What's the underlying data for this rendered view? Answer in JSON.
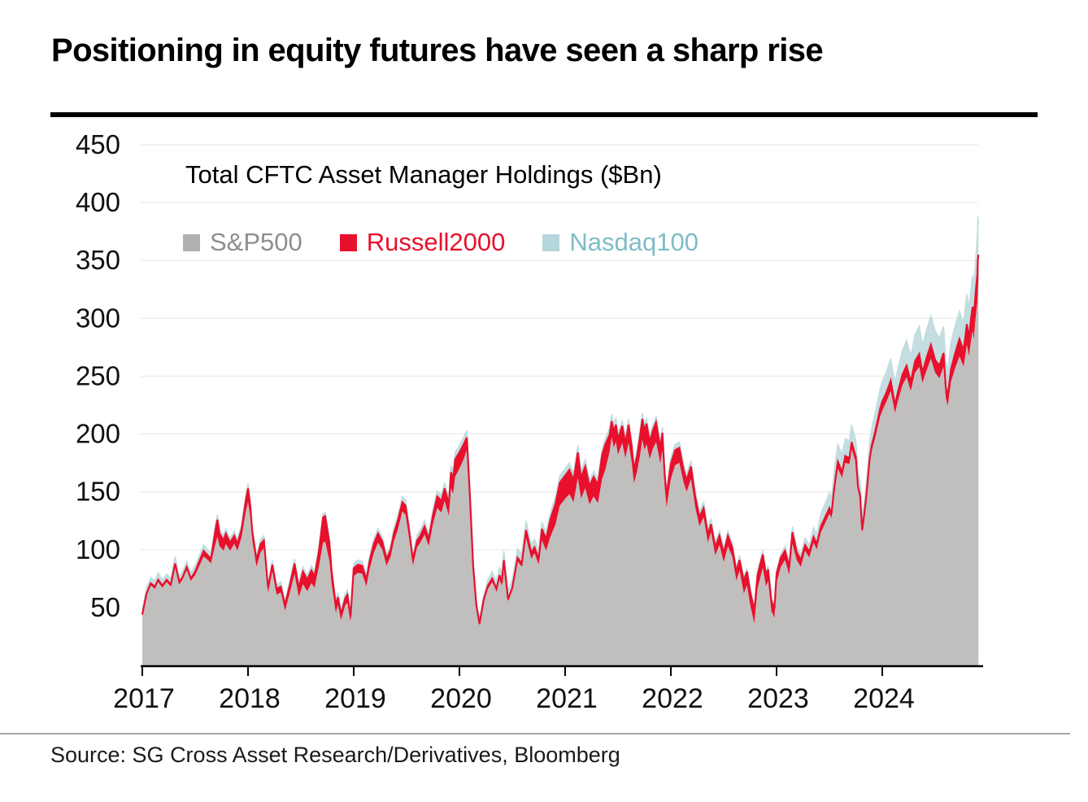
{
  "page": {
    "title": "Positioning in equity futures have seen a sharp rise",
    "source": "Source: SG Cross Asset Research/Derivatives, Bloomberg"
  },
  "chart_data": {
    "type": "area",
    "stacked": true,
    "title": "Total CFTC Asset Manager Holdings ($Bn)",
    "unit": "$Bn",
    "legend_position": "top-left-inside",
    "grid": true,
    "grid_color": "#ebebeb",
    "axis_color": "#000000",
    "tick_label_color": "#111111",
    "xlim": [
      2017.0,
      2025.0
    ],
    "ylim": [
      0,
      450
    ],
    "x_ticks": [
      2017,
      2018,
      2019,
      2020,
      2021,
      2022,
      2023,
      2024
    ],
    "y_ticks": [
      50,
      100,
      150,
      200,
      250,
      300,
      350,
      400,
      450
    ],
    "legend": [
      {
        "label": "S&P500",
        "swatch_color": "#b3b0b0",
        "text_color": "#918d8d"
      },
      {
        "label": "Russell2000",
        "swatch_color": "#e8112d",
        "text_color": "#e8112d"
      },
      {
        "label": "Nasdaq100",
        "swatch_color": "#b5d6da",
        "text_color": "#7fbcc8"
      }
    ],
    "series": [
      {
        "name": "S&P500",
        "color": "#c1bebe",
        "role": "bottom-band"
      },
      {
        "name": "Russell2000",
        "color": "#e8112d",
        "role": "middle-band"
      },
      {
        "name": "Nasdaq100",
        "color": "#c3dde0",
        "role": "top-band"
      }
    ],
    "point_format": [
      "year",
      "sp500",
      "russell2000",
      "nasdaq100"
    ],
    "points": [
      [
        2017.0,
        42,
        2,
        4
      ],
      [
        2017.04,
        60,
        2,
        5
      ],
      [
        2017.08,
        69,
        2,
        5
      ],
      [
        2017.12,
        66,
        2,
        5
      ],
      [
        2017.15,
        72,
        2,
        6
      ],
      [
        2017.19,
        67,
        2,
        5
      ],
      [
        2017.23,
        72,
        2,
        5
      ],
      [
        2017.27,
        68,
        2,
        5
      ],
      [
        2017.31,
        85,
        3,
        6
      ],
      [
        2017.35,
        70,
        2,
        5
      ],
      [
        2017.38,
        74,
        2,
        5
      ],
      [
        2017.42,
        82,
        3,
        5
      ],
      [
        2017.46,
        73,
        2,
        5
      ],
      [
        2017.5,
        78,
        3,
        5
      ],
      [
        2017.54,
        86,
        4,
        5
      ],
      [
        2017.58,
        94,
        5,
        5
      ],
      [
        2017.62,
        91,
        4,
        5
      ],
      [
        2017.65,
        88,
        4,
        5
      ],
      [
        2017.69,
        104,
        12,
        4
      ],
      [
        2017.71,
        111,
        15,
        4
      ],
      [
        2017.73,
        103,
        11,
        4
      ],
      [
        2017.77,
        99,
        9,
        4
      ],
      [
        2017.79,
        105,
        9,
        4
      ],
      [
        2017.83,
        99,
        7,
        4
      ],
      [
        2017.87,
        105,
        7,
        4
      ],
      [
        2017.9,
        99,
        6,
        4
      ],
      [
        2017.94,
        111,
        7,
        4
      ],
      [
        2017.98,
        133,
        10,
        4
      ],
      [
        2018.0,
        141,
        12,
        4
      ],
      [
        2018.02,
        129,
        10,
        4
      ],
      [
        2018.04,
        108,
        8,
        4
      ],
      [
        2018.08,
        85,
        6,
        4
      ],
      [
        2018.12,
        98,
        7,
        4
      ],
      [
        2018.15,
        101,
        7,
        4
      ],
      [
        2018.19,
        62,
        5,
        4
      ],
      [
        2018.23,
        81,
        6,
        4
      ],
      [
        2018.27,
        61,
        5,
        4
      ],
      [
        2018.31,
        63,
        5,
        4
      ],
      [
        2018.35,
        47,
        5,
        4
      ],
      [
        2018.4,
        64,
        7,
        4
      ],
      [
        2018.44,
        79,
        9,
        4
      ],
      [
        2018.48,
        59,
        8,
        4
      ],
      [
        2018.52,
        70,
        11,
        4
      ],
      [
        2018.56,
        64,
        10,
        4
      ],
      [
        2018.6,
        71,
        11,
        4
      ],
      [
        2018.63,
        67,
        10,
        4
      ],
      [
        2018.67,
        85,
        13,
        4
      ],
      [
        2018.71,
        106,
        22,
        3
      ],
      [
        2018.73,
        107,
        22,
        3
      ],
      [
        2018.77,
        90,
        16,
        3
      ],
      [
        2018.79,
        71,
        11,
        3
      ],
      [
        2018.83,
        45,
        7,
        3
      ],
      [
        2018.85,
        52,
        7,
        4
      ],
      [
        2018.88,
        39,
        5,
        4
      ],
      [
        2018.92,
        52,
        6,
        4
      ],
      [
        2018.94,
        54,
        7,
        4
      ],
      [
        2018.97,
        37,
        5,
        4
      ],
      [
        2019.0,
        77,
        7,
        4
      ],
      [
        2019.04,
        80,
        7,
        4
      ],
      [
        2019.08,
        79,
        7,
        4
      ],
      [
        2019.12,
        68,
        6,
        4
      ],
      [
        2019.15,
        83,
        7,
        4
      ],
      [
        2019.19,
        97,
        8,
        4
      ],
      [
        2019.23,
        106,
        8,
        4
      ],
      [
        2019.27,
        100,
        7,
        4
      ],
      [
        2019.31,
        86,
        6,
        4
      ],
      [
        2019.35,
        94,
        6,
        4
      ],
      [
        2019.38,
        107,
        7,
        4
      ],
      [
        2019.42,
        118,
        8,
        4
      ],
      [
        2019.46,
        133,
        8,
        5
      ],
      [
        2019.49,
        130,
        8,
        5
      ],
      [
        2019.52,
        112,
        7,
        5
      ],
      [
        2019.54,
        99,
        6,
        5
      ],
      [
        2019.56,
        86,
        5,
        5
      ],
      [
        2019.6,
        102,
        6,
        5
      ],
      [
        2019.63,
        106,
        6,
        5
      ],
      [
        2019.67,
        113,
        7,
        5
      ],
      [
        2019.71,
        103,
        6,
        5
      ],
      [
        2019.75,
        122,
        8,
        5
      ],
      [
        2019.79,
        136,
        10,
        5
      ],
      [
        2019.83,
        132,
        10,
        5
      ],
      [
        2019.86,
        142,
        11,
        5
      ],
      [
        2019.9,
        129,
        10,
        5
      ],
      [
        2019.92,
        153,
        14,
        6
      ],
      [
        2019.94,
        148,
        13,
        6
      ],
      [
        2019.96,
        163,
        15,
        6
      ],
      [
        2020.0,
        170,
        14,
        6
      ],
      [
        2020.04,
        178,
        13,
        6
      ],
      [
        2020.07,
        186,
        11,
        6
      ],
      [
        2020.1,
        138,
        7,
        5
      ],
      [
        2020.13,
        82,
        4,
        4
      ],
      [
        2020.16,
        49,
        3,
        3
      ],
      [
        2020.19,
        34,
        2,
        3
      ],
      [
        2020.23,
        54,
        3,
        4
      ],
      [
        2020.27,
        66,
        3,
        5
      ],
      [
        2020.31,
        72,
        3,
        6
      ],
      [
        2020.35,
        64,
        2,
        6
      ],
      [
        2020.38,
        75,
        3,
        7
      ],
      [
        2020.4,
        68,
        3,
        7
      ],
      [
        2020.42,
        88,
        3,
        8
      ],
      [
        2020.46,
        55,
        2,
        7
      ],
      [
        2020.5,
        65,
        2,
        7
      ],
      [
        2020.55,
        90,
        3,
        8
      ],
      [
        2020.59,
        85,
        3,
        8
      ],
      [
        2020.63,
        110,
        7,
        8
      ],
      [
        2020.68,
        92,
        5,
        7
      ],
      [
        2020.71,
        97,
        5,
        7
      ],
      [
        2020.75,
        87,
        5,
        7
      ],
      [
        2020.78,
        108,
        10,
        6
      ],
      [
        2020.82,
        99,
        10,
        6
      ],
      [
        2020.86,
        111,
        15,
        6
      ],
      [
        2020.91,
        122,
        18,
        6
      ],
      [
        2020.95,
        138,
        20,
        6
      ],
      [
        2021.0,
        144,
        20,
        6
      ],
      [
        2021.04,
        148,
        21,
        6
      ],
      [
        2021.08,
        141,
        19,
        6
      ],
      [
        2021.12,
        162,
        22,
        6
      ],
      [
        2021.15,
        144,
        18,
        6
      ],
      [
        2021.19,
        153,
        19,
        6
      ],
      [
        2021.23,
        139,
        16,
        5
      ],
      [
        2021.27,
        146,
        17,
        5
      ],
      [
        2021.31,
        140,
        16,
        5
      ],
      [
        2021.35,
        161,
        21,
        5
      ],
      [
        2021.38,
        169,
        22,
        5
      ],
      [
        2021.42,
        184,
        15,
        6
      ],
      [
        2021.44,
        197,
        14,
        6
      ],
      [
        2021.46,
        188,
        14,
        6
      ],
      [
        2021.48,
        193,
        15,
        6
      ],
      [
        2021.5,
        182,
        14,
        5
      ],
      [
        2021.52,
        187,
        14,
        5
      ],
      [
        2021.54,
        192,
        15,
        5
      ],
      [
        2021.57,
        179,
        13,
        5
      ],
      [
        2021.6,
        192,
        16,
        5
      ],
      [
        2021.63,
        175,
        14,
        5
      ],
      [
        2021.65,
        157,
        12,
        5
      ],
      [
        2021.68,
        167,
        14,
        5
      ],
      [
        2021.71,
        182,
        17,
        5
      ],
      [
        2021.73,
        195,
        18,
        5
      ],
      [
        2021.75,
        186,
        17,
        5
      ],
      [
        2021.77,
        191,
        18,
        5
      ],
      [
        2021.8,
        178,
        15,
        5
      ],
      [
        2021.83,
        187,
        16,
        5
      ],
      [
        2021.86,
        193,
        17,
        5
      ],
      [
        2021.88,
        184,
        15,
        5
      ],
      [
        2021.9,
        174,
        14,
        5
      ],
      [
        2021.92,
        186,
        15,
        5
      ],
      [
        2021.94,
        155,
        12,
        5
      ],
      [
        2021.96,
        136,
        10,
        5
      ],
      [
        2021.98,
        149,
        12,
        5
      ],
      [
        2022.0,
        161,
        13,
        5
      ],
      [
        2022.04,
        173,
        13,
        5
      ],
      [
        2022.08,
        175,
        13,
        5
      ],
      [
        2022.12,
        158,
        11,
        5
      ],
      [
        2022.15,
        150,
        10,
        5
      ],
      [
        2022.19,
        161,
        11,
        5
      ],
      [
        2022.23,
        137,
        9,
        5
      ],
      [
        2022.27,
        120,
        8,
        5
      ],
      [
        2022.31,
        128,
        8,
        5
      ],
      [
        2022.35,
        106,
        7,
        5
      ],
      [
        2022.38,
        115,
        7,
        5
      ],
      [
        2022.42,
        95,
        7,
        4
      ],
      [
        2022.46,
        104,
        8,
        4
      ],
      [
        2022.5,
        89,
        8,
        4
      ],
      [
        2022.54,
        103,
        9,
        4
      ],
      [
        2022.58,
        94,
        8,
        4
      ],
      [
        2022.62,
        73,
        8,
        4
      ],
      [
        2022.65,
        82,
        9,
        4
      ],
      [
        2022.69,
        62,
        11,
        3
      ],
      [
        2022.72,
        69,
        12,
        3
      ],
      [
        2022.75,
        52,
        12,
        3
      ],
      [
        2022.79,
        36,
        11,
        3
      ],
      [
        2022.82,
        66,
        12,
        3
      ],
      [
        2022.85,
        77,
        12,
        3
      ],
      [
        2022.87,
        84,
        12,
        3
      ],
      [
        2022.9,
        68,
        10,
        3
      ],
      [
        2022.92,
        73,
        10,
        3
      ],
      [
        2022.95,
        47,
        9,
        3
      ],
      [
        2022.98,
        41,
        8,
        3
      ],
      [
        2023.0,
        71,
        8,
        3
      ],
      [
        2023.04,
        85,
        8,
        3
      ],
      [
        2023.08,
        91,
        8,
        4
      ],
      [
        2023.12,
        78,
        7,
        4
      ],
      [
        2023.15,
        105,
        10,
        5
      ],
      [
        2023.19,
        91,
        7,
        5
      ],
      [
        2023.23,
        85,
        6,
        5
      ],
      [
        2023.27,
        99,
        5,
        6
      ],
      [
        2023.31,
        93,
        5,
        6
      ],
      [
        2023.35,
        106,
        5,
        8
      ],
      [
        2023.38,
        100,
        5,
        8
      ],
      [
        2023.42,
        115,
        5,
        11
      ],
      [
        2023.46,
        123,
        5,
        12
      ],
      [
        2023.5,
        131,
        5,
        13
      ],
      [
        2023.52,
        127,
        4,
        13
      ],
      [
        2023.54,
        144,
        5,
        14
      ],
      [
        2023.56,
        158,
        5,
        15
      ],
      [
        2023.58,
        170,
        6,
        15
      ],
      [
        2023.62,
        162,
        5,
        15
      ],
      [
        2023.65,
        175,
        6,
        15
      ],
      [
        2023.69,
        174,
        5,
        15
      ],
      [
        2023.71,
        187,
        6,
        15
      ],
      [
        2023.75,
        175,
        5,
        14
      ],
      [
        2023.77,
        151,
        4,
        13
      ],
      [
        2023.79,
        143,
        4,
        12
      ],
      [
        2023.81,
        114,
        3,
        11
      ],
      [
        2023.83,
        127,
        4,
        11
      ],
      [
        2023.85,
        142,
        5,
        12
      ],
      [
        2023.88,
        173,
        5,
        14
      ],
      [
        2023.9,
        185,
        5,
        15
      ],
      [
        2023.92,
        192,
        5,
        16
      ],
      [
        2023.94,
        199,
        6,
        16
      ],
      [
        2023.96,
        207,
        6,
        17
      ],
      [
        2023.98,
        215,
        7,
        17
      ],
      [
        2024.0,
        220,
        8,
        17
      ],
      [
        2024.04,
        228,
        8,
        18
      ],
      [
        2024.08,
        237,
        9,
        19
      ],
      [
        2024.12,
        218,
        7,
        19
      ],
      [
        2024.15,
        229,
        8,
        20
      ],
      [
        2024.19,
        242,
        9,
        21
      ],
      [
        2024.23,
        249,
        10,
        22
      ],
      [
        2024.27,
        237,
        8,
        22
      ],
      [
        2024.31,
        253,
        10,
        23
      ],
      [
        2024.35,
        258,
        11,
        24
      ],
      [
        2024.38,
        244,
        9,
        24
      ],
      [
        2024.42,
        255,
        11,
        24
      ],
      [
        2024.46,
        265,
        12,
        25
      ],
      [
        2024.5,
        253,
        11,
        25
      ],
      [
        2024.54,
        248,
        11,
        24
      ],
      [
        2024.58,
        258,
        12,
        23
      ],
      [
        2024.6,
        231,
        10,
        22
      ],
      [
        2024.62,
        224,
        9,
        22
      ],
      [
        2024.65,
        245,
        11,
        23
      ],
      [
        2024.69,
        257,
        13,
        24
      ],
      [
        2024.73,
        267,
        15,
        24
      ],
      [
        2024.77,
        258,
        14,
        24
      ],
      [
        2024.8,
        277,
        18,
        26
      ],
      [
        2024.82,
        267,
        16,
        26
      ],
      [
        2024.84,
        281,
        19,
        26
      ],
      [
        2024.855,
        289,
        21,
        27
      ],
      [
        2024.865,
        281,
        19,
        27
      ],
      [
        2024.88,
        297,
        21,
        28
      ],
      [
        2024.89,
        306,
        23,
        30
      ],
      [
        2024.9,
        314,
        24,
        33
      ],
      [
        2024.905,
        323,
        28,
        37
      ],
      [
        2024.91,
        334,
        21,
        26
      ]
    ]
  }
}
